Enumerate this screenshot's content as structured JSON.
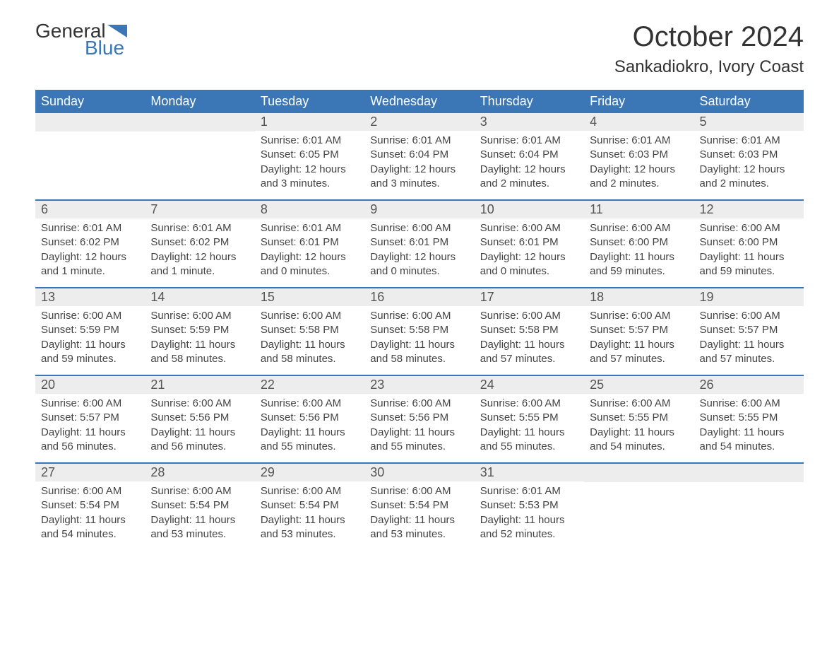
{
  "logo": {
    "word1": "General",
    "word2": "Blue",
    "flag_color": "#3b77b7"
  },
  "title": "October 2024",
  "location": "Sankadiokro, Ivory Coast",
  "colors": {
    "header_bg": "#3b77b7",
    "header_text": "#ffffff",
    "daynum_bg": "#ededed",
    "border": "#3b77b7",
    "body_text": "#444444",
    "background": "#ffffff"
  },
  "fonts": {
    "title_size": 40,
    "location_size": 24,
    "weekday_size": 18,
    "daynum_size": 18,
    "body_size": 15
  },
  "weekdays": [
    "Sunday",
    "Monday",
    "Tuesday",
    "Wednesday",
    "Thursday",
    "Friday",
    "Saturday"
  ],
  "weeks": [
    [
      null,
      null,
      {
        "n": "1",
        "sr": "Sunrise: 6:01 AM",
        "ss": "Sunset: 6:05 PM",
        "d1": "Daylight: 12 hours",
        "d2": "and 3 minutes."
      },
      {
        "n": "2",
        "sr": "Sunrise: 6:01 AM",
        "ss": "Sunset: 6:04 PM",
        "d1": "Daylight: 12 hours",
        "d2": "and 3 minutes."
      },
      {
        "n": "3",
        "sr": "Sunrise: 6:01 AM",
        "ss": "Sunset: 6:04 PM",
        "d1": "Daylight: 12 hours",
        "d2": "and 2 minutes."
      },
      {
        "n": "4",
        "sr": "Sunrise: 6:01 AM",
        "ss": "Sunset: 6:03 PM",
        "d1": "Daylight: 12 hours",
        "d2": "and 2 minutes."
      },
      {
        "n": "5",
        "sr": "Sunrise: 6:01 AM",
        "ss": "Sunset: 6:03 PM",
        "d1": "Daylight: 12 hours",
        "d2": "and 2 minutes."
      }
    ],
    [
      {
        "n": "6",
        "sr": "Sunrise: 6:01 AM",
        "ss": "Sunset: 6:02 PM",
        "d1": "Daylight: 12 hours",
        "d2": "and 1 minute."
      },
      {
        "n": "7",
        "sr": "Sunrise: 6:01 AM",
        "ss": "Sunset: 6:02 PM",
        "d1": "Daylight: 12 hours",
        "d2": "and 1 minute."
      },
      {
        "n": "8",
        "sr": "Sunrise: 6:01 AM",
        "ss": "Sunset: 6:01 PM",
        "d1": "Daylight: 12 hours",
        "d2": "and 0 minutes."
      },
      {
        "n": "9",
        "sr": "Sunrise: 6:00 AM",
        "ss": "Sunset: 6:01 PM",
        "d1": "Daylight: 12 hours",
        "d2": "and 0 minutes."
      },
      {
        "n": "10",
        "sr": "Sunrise: 6:00 AM",
        "ss": "Sunset: 6:01 PM",
        "d1": "Daylight: 12 hours",
        "d2": "and 0 minutes."
      },
      {
        "n": "11",
        "sr": "Sunrise: 6:00 AM",
        "ss": "Sunset: 6:00 PM",
        "d1": "Daylight: 11 hours",
        "d2": "and 59 minutes."
      },
      {
        "n": "12",
        "sr": "Sunrise: 6:00 AM",
        "ss": "Sunset: 6:00 PM",
        "d1": "Daylight: 11 hours",
        "d2": "and 59 minutes."
      }
    ],
    [
      {
        "n": "13",
        "sr": "Sunrise: 6:00 AM",
        "ss": "Sunset: 5:59 PM",
        "d1": "Daylight: 11 hours",
        "d2": "and 59 minutes."
      },
      {
        "n": "14",
        "sr": "Sunrise: 6:00 AM",
        "ss": "Sunset: 5:59 PM",
        "d1": "Daylight: 11 hours",
        "d2": "and 58 minutes."
      },
      {
        "n": "15",
        "sr": "Sunrise: 6:00 AM",
        "ss": "Sunset: 5:58 PM",
        "d1": "Daylight: 11 hours",
        "d2": "and 58 minutes."
      },
      {
        "n": "16",
        "sr": "Sunrise: 6:00 AM",
        "ss": "Sunset: 5:58 PM",
        "d1": "Daylight: 11 hours",
        "d2": "and 58 minutes."
      },
      {
        "n": "17",
        "sr": "Sunrise: 6:00 AM",
        "ss": "Sunset: 5:58 PM",
        "d1": "Daylight: 11 hours",
        "d2": "and 57 minutes."
      },
      {
        "n": "18",
        "sr": "Sunrise: 6:00 AM",
        "ss": "Sunset: 5:57 PM",
        "d1": "Daylight: 11 hours",
        "d2": "and 57 minutes."
      },
      {
        "n": "19",
        "sr": "Sunrise: 6:00 AM",
        "ss": "Sunset: 5:57 PM",
        "d1": "Daylight: 11 hours",
        "d2": "and 57 minutes."
      }
    ],
    [
      {
        "n": "20",
        "sr": "Sunrise: 6:00 AM",
        "ss": "Sunset: 5:57 PM",
        "d1": "Daylight: 11 hours",
        "d2": "and 56 minutes."
      },
      {
        "n": "21",
        "sr": "Sunrise: 6:00 AM",
        "ss": "Sunset: 5:56 PM",
        "d1": "Daylight: 11 hours",
        "d2": "and 56 minutes."
      },
      {
        "n": "22",
        "sr": "Sunrise: 6:00 AM",
        "ss": "Sunset: 5:56 PM",
        "d1": "Daylight: 11 hours",
        "d2": "and 55 minutes."
      },
      {
        "n": "23",
        "sr": "Sunrise: 6:00 AM",
        "ss": "Sunset: 5:56 PM",
        "d1": "Daylight: 11 hours",
        "d2": "and 55 minutes."
      },
      {
        "n": "24",
        "sr": "Sunrise: 6:00 AM",
        "ss": "Sunset: 5:55 PM",
        "d1": "Daylight: 11 hours",
        "d2": "and 55 minutes."
      },
      {
        "n": "25",
        "sr": "Sunrise: 6:00 AM",
        "ss": "Sunset: 5:55 PM",
        "d1": "Daylight: 11 hours",
        "d2": "and 54 minutes."
      },
      {
        "n": "26",
        "sr": "Sunrise: 6:00 AM",
        "ss": "Sunset: 5:55 PM",
        "d1": "Daylight: 11 hours",
        "d2": "and 54 minutes."
      }
    ],
    [
      {
        "n": "27",
        "sr": "Sunrise: 6:00 AM",
        "ss": "Sunset: 5:54 PM",
        "d1": "Daylight: 11 hours",
        "d2": "and 54 minutes."
      },
      {
        "n": "28",
        "sr": "Sunrise: 6:00 AM",
        "ss": "Sunset: 5:54 PM",
        "d1": "Daylight: 11 hours",
        "d2": "and 53 minutes."
      },
      {
        "n": "29",
        "sr": "Sunrise: 6:00 AM",
        "ss": "Sunset: 5:54 PM",
        "d1": "Daylight: 11 hours",
        "d2": "and 53 minutes."
      },
      {
        "n": "30",
        "sr": "Sunrise: 6:00 AM",
        "ss": "Sunset: 5:54 PM",
        "d1": "Daylight: 11 hours",
        "d2": "and 53 minutes."
      },
      {
        "n": "31",
        "sr": "Sunrise: 6:01 AM",
        "ss": "Sunset: 5:53 PM",
        "d1": "Daylight: 11 hours",
        "d2": "and 52 minutes."
      },
      null,
      null
    ]
  ]
}
